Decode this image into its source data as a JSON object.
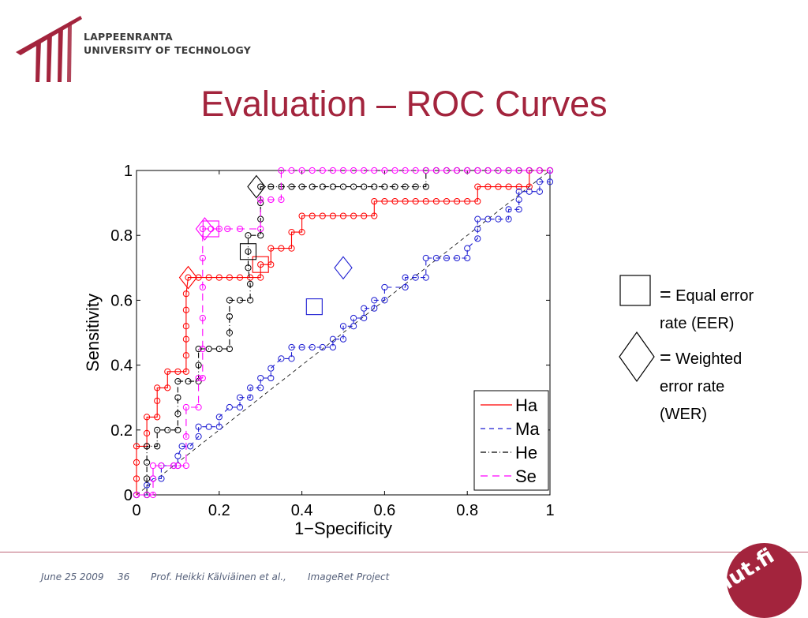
{
  "header": {
    "university_line1": "LAPPEENRANTA",
    "university_line2": "UNIVERSITY OF TECHNOLOGY"
  },
  "slide": {
    "title": "Evaluation – ROC Curves"
  },
  "colors": {
    "accent": "#a3243d",
    "ha": "#ff0000",
    "ma": "#1e1ed2",
    "he": "#000000",
    "se": "#ff00ff",
    "footer_text": "#55607a"
  },
  "legend_notes": {
    "eer_eq": "=",
    "eer_text1": "Equal error",
    "eer_text2": "rate (EER)",
    "wer_eq": "=",
    "wer_text1": "Weighted",
    "wer_text2": "error rate",
    "wer_text3": "(WER)"
  },
  "footer": {
    "date": "June 25 2009",
    "page": "36",
    "author": "Prof. Heikki Kälviäinen et al.,",
    "project": "ImageRet Project"
  },
  "badge": {
    "text": "lut.fi"
  },
  "chart_data": {
    "type": "line",
    "xlabel": "1−Specificity",
    "ylabel": "Sensitivity",
    "xlim": [
      0,
      1
    ],
    "ylim": [
      0,
      1
    ],
    "xticks": [
      "0",
      "0.2",
      "0.4",
      "0.6",
      "0.8",
      "1"
    ],
    "yticks": [
      "0",
      "0.2",
      "0.4",
      "0.6",
      "0.8",
      "1"
    ],
    "grid": false,
    "legend_position": "bottom-right",
    "series": [
      {
        "name": "Ha",
        "color": "#ff0000",
        "dash": "solid",
        "points": [
          [
            0,
            0
          ],
          [
            0,
            0.05
          ],
          [
            0,
            0.1
          ],
          [
            0,
            0.15
          ],
          [
            0.025,
            0.15
          ],
          [
            0.025,
            0.19
          ],
          [
            0.025,
            0.24
          ],
          [
            0.05,
            0.24
          ],
          [
            0.05,
            0.29
          ],
          [
            0.05,
            0.33
          ],
          [
            0.075,
            0.33
          ],
          [
            0.075,
            0.38
          ],
          [
            0.1,
            0.38
          ],
          [
            0.12,
            0.38
          ],
          [
            0.12,
            0.43
          ],
          [
            0.12,
            0.48
          ],
          [
            0.12,
            0.52
          ],
          [
            0.12,
            0.57
          ],
          [
            0.12,
            0.62
          ],
          [
            0.125,
            0.67
          ],
          [
            0.15,
            0.67
          ],
          [
            0.175,
            0.67
          ],
          [
            0.2,
            0.67
          ],
          [
            0.225,
            0.67
          ],
          [
            0.25,
            0.67
          ],
          [
            0.275,
            0.67
          ],
          [
            0.3,
            0.67
          ],
          [
            0.3,
            0.71
          ],
          [
            0.325,
            0.71
          ],
          [
            0.325,
            0.76
          ],
          [
            0.35,
            0.76
          ],
          [
            0.375,
            0.76
          ],
          [
            0.375,
            0.81
          ],
          [
            0.4,
            0.81
          ],
          [
            0.4,
            0.86
          ],
          [
            0.425,
            0.86
          ],
          [
            0.45,
            0.86
          ],
          [
            0.475,
            0.86
          ],
          [
            0.5,
            0.86
          ],
          [
            0.525,
            0.86
          ],
          [
            0.55,
            0.86
          ],
          [
            0.575,
            0.86
          ],
          [
            0.575,
            0.905
          ],
          [
            0.6,
            0.905
          ],
          [
            0.625,
            0.905
          ],
          [
            0.65,
            0.905
          ],
          [
            0.675,
            0.905
          ],
          [
            0.7,
            0.905
          ],
          [
            0.725,
            0.905
          ],
          [
            0.75,
            0.905
          ],
          [
            0.775,
            0.905
          ],
          [
            0.8,
            0.905
          ],
          [
            0.825,
            0.905
          ],
          [
            0.825,
            0.95
          ],
          [
            0.85,
            0.95
          ],
          [
            0.875,
            0.95
          ],
          [
            0.9,
            0.95
          ],
          [
            0.925,
            0.95
          ],
          [
            0.95,
            0.95
          ],
          [
            0.95,
            1
          ],
          [
            0.975,
            1
          ],
          [
            1,
            1
          ]
        ]
      },
      {
        "name": "Ma",
        "color": "#1e1ed2",
        "dash": "6,5",
        "points": [
          [
            0,
            0
          ],
          [
            0.025,
            0
          ],
          [
            0.025,
            0.03
          ],
          [
            0.04,
            0.05
          ],
          [
            0.06,
            0.05
          ],
          [
            0.06,
            0.09
          ],
          [
            0.09,
            0.09
          ],
          [
            0.1,
            0.09
          ],
          [
            0.1,
            0.12
          ],
          [
            0.11,
            0.15
          ],
          [
            0.13,
            0.15
          ],
          [
            0.15,
            0.18
          ],
          [
            0.15,
            0.21
          ],
          [
            0.175,
            0.21
          ],
          [
            0.2,
            0.21
          ],
          [
            0.2,
            0.24
          ],
          [
            0.225,
            0.27
          ],
          [
            0.25,
            0.27
          ],
          [
            0.25,
            0.3
          ],
          [
            0.275,
            0.3
          ],
          [
            0.275,
            0.33
          ],
          [
            0.3,
            0.33
          ],
          [
            0.3,
            0.36
          ],
          [
            0.325,
            0.36
          ],
          [
            0.325,
            0.39
          ],
          [
            0.35,
            0.42
          ],
          [
            0.375,
            0.42
          ],
          [
            0.375,
            0.455
          ],
          [
            0.4,
            0.455
          ],
          [
            0.425,
            0.455
          ],
          [
            0.45,
            0.455
          ],
          [
            0.475,
            0.455
          ],
          [
            0.475,
            0.48
          ],
          [
            0.5,
            0.48
          ],
          [
            0.5,
            0.52
          ],
          [
            0.525,
            0.52
          ],
          [
            0.525,
            0.545
          ],
          [
            0.55,
            0.545
          ],
          [
            0.55,
            0.575
          ],
          [
            0.575,
            0.575
          ],
          [
            0.575,
            0.6
          ],
          [
            0.6,
            0.6
          ],
          [
            0.6,
            0.64
          ],
          [
            0.65,
            0.64
          ],
          [
            0.65,
            0.67
          ],
          [
            0.675,
            0.67
          ],
          [
            0.7,
            0.67
          ],
          [
            0.7,
            0.73
          ],
          [
            0.725,
            0.73
          ],
          [
            0.75,
            0.73
          ],
          [
            0.775,
            0.73
          ],
          [
            0.8,
            0.73
          ],
          [
            0.8,
            0.76
          ],
          [
            0.825,
            0.79
          ],
          [
            0.825,
            0.82
          ],
          [
            0.825,
            0.85
          ],
          [
            0.85,
            0.85
          ],
          [
            0.875,
            0.85
          ],
          [
            0.9,
            0.85
          ],
          [
            0.9,
            0.88
          ],
          [
            0.925,
            0.88
          ],
          [
            0.925,
            0.91
          ],
          [
            0.925,
            0.935
          ],
          [
            0.95,
            0.935
          ],
          [
            0.975,
            0.935
          ],
          [
            0.975,
            0.965
          ],
          [
            1,
            0.965
          ],
          [
            1,
            1
          ]
        ]
      },
      {
        "name": "He",
        "color": "#000000",
        "dash": "7,3,1,3",
        "points": [
          [
            0,
            0
          ],
          [
            0.025,
            0
          ],
          [
            0.025,
            0.05
          ],
          [
            0.025,
            0.1
          ],
          [
            0.025,
            0.15
          ],
          [
            0.05,
            0.15
          ],
          [
            0.05,
            0.2
          ],
          [
            0.075,
            0.2
          ],
          [
            0.1,
            0.2
          ],
          [
            0.1,
            0.25
          ],
          [
            0.1,
            0.3
          ],
          [
            0.1,
            0.35
          ],
          [
            0.125,
            0.35
          ],
          [
            0.15,
            0.35
          ],
          [
            0.15,
            0.4
          ],
          [
            0.15,
            0.45
          ],
          [
            0.175,
            0.45
          ],
          [
            0.2,
            0.45
          ],
          [
            0.225,
            0.45
          ],
          [
            0.225,
            0.5
          ],
          [
            0.225,
            0.55
          ],
          [
            0.225,
            0.6
          ],
          [
            0.25,
            0.6
          ],
          [
            0.275,
            0.6
          ],
          [
            0.275,
            0.65
          ],
          [
            0.27,
            0.7
          ],
          [
            0.27,
            0.75
          ],
          [
            0.27,
            0.8
          ],
          [
            0.3,
            0.8
          ],
          [
            0.3,
            0.85
          ],
          [
            0.3,
            0.9
          ],
          [
            0.3,
            0.95
          ],
          [
            0.325,
            0.95
          ],
          [
            0.35,
            0.95
          ],
          [
            0.375,
            0.95
          ],
          [
            0.4,
            0.95
          ],
          [
            0.425,
            0.95
          ],
          [
            0.45,
            0.95
          ],
          [
            0.475,
            0.95
          ],
          [
            0.5,
            0.95
          ],
          [
            0.525,
            0.95
          ],
          [
            0.55,
            0.95
          ],
          [
            0.575,
            0.95
          ],
          [
            0.6,
            0.95
          ],
          [
            0.625,
            0.95
          ],
          [
            0.65,
            0.95
          ],
          [
            0.675,
            0.95
          ],
          [
            0.7,
            0.95
          ],
          [
            0.7,
            1
          ],
          [
            0.725,
            1
          ],
          [
            0.75,
            1
          ],
          [
            0.775,
            1
          ],
          [
            0.8,
            1
          ],
          [
            0.825,
            1
          ],
          [
            0.85,
            1
          ],
          [
            0.875,
            1
          ],
          [
            0.9,
            1
          ],
          [
            0.925,
            1
          ],
          [
            0.95,
            1
          ],
          [
            0.975,
            1
          ],
          [
            1,
            1
          ]
        ]
      },
      {
        "name": "Se",
        "color": "#ff00ff",
        "dash": "9,6",
        "points": [
          [
            0,
            0
          ],
          [
            0.025,
            0
          ],
          [
            0.04,
            0
          ],
          [
            0.04,
            0.05
          ],
          [
            0.04,
            0.09
          ],
          [
            0.06,
            0.09
          ],
          [
            0.09,
            0.09
          ],
          [
            0.1,
            0.09
          ],
          [
            0.12,
            0.09
          ],
          [
            0.12,
            0.18
          ],
          [
            0.12,
            0.27
          ],
          [
            0.15,
            0.27
          ],
          [
            0.15,
            0.36
          ],
          [
            0.16,
            0.36
          ],
          [
            0.16,
            0.45
          ],
          [
            0.16,
            0.545
          ],
          [
            0.16,
            0.64
          ],
          [
            0.16,
            0.73
          ],
          [
            0.16,
            0.82
          ],
          [
            0.18,
            0.82
          ],
          [
            0.2,
            0.82
          ],
          [
            0.22,
            0.82
          ],
          [
            0.25,
            0.82
          ],
          [
            0.3,
            0.82
          ],
          [
            0.3,
            0.91
          ],
          [
            0.325,
            0.91
          ],
          [
            0.35,
            0.91
          ],
          [
            0.35,
            1
          ],
          [
            0.375,
            1
          ],
          [
            0.4,
            1
          ],
          [
            0.425,
            1
          ],
          [
            0.45,
            1
          ],
          [
            0.475,
            1
          ],
          [
            0.5,
            1
          ],
          [
            0.525,
            1
          ],
          [
            0.55,
            1
          ],
          [
            0.575,
            1
          ],
          [
            0.6,
            1
          ],
          [
            0.625,
            1
          ],
          [
            0.65,
            1
          ],
          [
            0.675,
            1
          ],
          [
            0.7,
            1
          ],
          [
            0.725,
            1
          ],
          [
            0.75,
            1
          ],
          [
            0.775,
            1
          ],
          [
            0.8,
            1
          ],
          [
            0.825,
            1
          ],
          [
            0.85,
            1
          ],
          [
            0.875,
            1
          ],
          [
            0.9,
            1
          ],
          [
            0.925,
            1
          ],
          [
            0.95,
            1
          ],
          [
            0.975,
            1
          ],
          [
            1,
            1
          ]
        ]
      }
    ],
    "eer_markers": [
      {
        "series": "Ha",
        "x": 0.3,
        "y": 0.71
      },
      {
        "series": "Ma",
        "x": 0.43,
        "y": 0.58
      },
      {
        "series": "He",
        "x": 0.27,
        "y": 0.75
      },
      {
        "series": "Se",
        "x": 0.18,
        "y": 0.82
      }
    ],
    "wer_markers": [
      {
        "series": "Ha",
        "x": 0.125,
        "y": 0.67
      },
      {
        "series": "Ma",
        "x": 0.5,
        "y": 0.7
      },
      {
        "series": "He",
        "x": 0.29,
        "y": 0.95
      },
      {
        "series": "Se",
        "x": 0.165,
        "y": 0.82
      }
    ],
    "chance_line": [
      [
        0,
        0
      ],
      [
        1,
        1
      ]
    ]
  }
}
